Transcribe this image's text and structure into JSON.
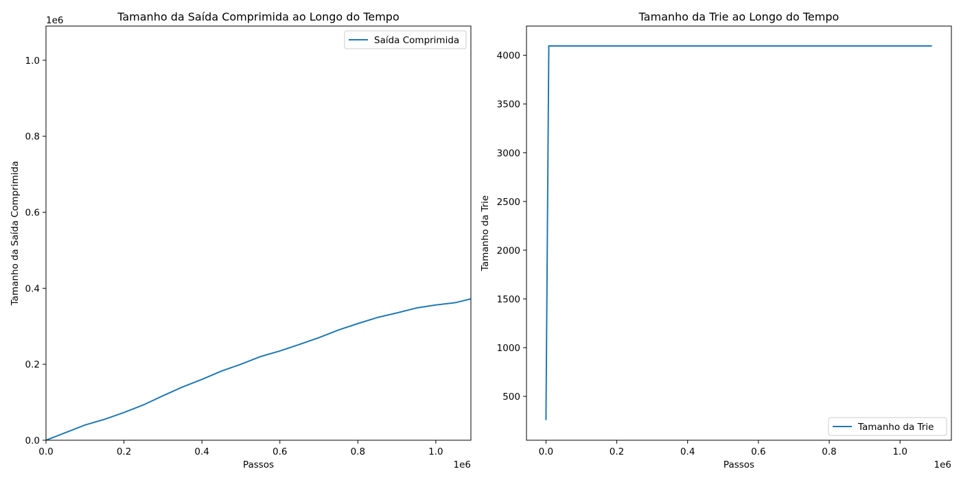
{
  "chart_data": [
    {
      "type": "line",
      "title": "Tamanho da Saída Comprimida ao Longo do Tempo",
      "xlabel": "Passos",
      "ylabel": "Tamanho da Saída Comprimida",
      "x_offset_label": "1e6",
      "y_offset_label": "1e6",
      "xlim": [
        0,
        1.09
      ],
      "ylim": [
        0,
        1.09
      ],
      "xticks": [
        0.0,
        0.2,
        0.4,
        0.6,
        0.8,
        1.0
      ],
      "xtick_labels": [
        "0.0",
        "0.2",
        "0.4",
        "0.6",
        "0.8",
        "1.0"
      ],
      "yticks": [
        0.0,
        0.2,
        0.4,
        0.6,
        0.8,
        1.0
      ],
      "ytick_labels": [
        "0.0",
        "0.2",
        "0.4",
        "0.6",
        "0.8",
        "1.0"
      ],
      "legend_position": "top-right",
      "color": "#1f77b4",
      "series": [
        {
          "name": "Saída Comprimida",
          "x": [
            0.0,
            0.05,
            0.1,
            0.15,
            0.2,
            0.25,
            0.3,
            0.35,
            0.4,
            0.45,
            0.5,
            0.55,
            0.6,
            0.65,
            0.7,
            0.75,
            0.8,
            0.85,
            0.9,
            0.95,
            1.0,
            1.05,
            1.09
          ],
          "y": [
            0.0,
            0.02,
            0.04,
            0.055,
            0.073,
            0.093,
            0.117,
            0.14,
            0.16,
            0.182,
            0.2,
            0.22,
            0.235,
            0.252,
            0.27,
            0.29,
            0.307,
            0.323,
            0.335,
            0.348,
            0.356,
            0.362,
            0.372
          ]
        }
      ]
    },
    {
      "type": "line",
      "title": "Tamanho da Trie ao Longo do Tempo",
      "xlabel": "Passos",
      "ylabel": "Tamanho da Trie",
      "x_offset_label": "1e6",
      "xlim": [
        -0.055,
        1.145
      ],
      "ylim": [
        50,
        4300
      ],
      "xticks": [
        0.0,
        0.2,
        0.4,
        0.6,
        0.8,
        1.0
      ],
      "xtick_labels": [
        "0.0",
        "0.2",
        "0.4",
        "0.6",
        "0.8",
        "1.0"
      ],
      "yticks": [
        500,
        1000,
        1500,
        2000,
        2500,
        3000,
        3500,
        4000
      ],
      "ytick_labels": [
        "500",
        "1000",
        "1500",
        "2000",
        "2500",
        "3000",
        "3500",
        "4000"
      ],
      "legend_position": "bottom-right",
      "color": "#1f77b4",
      "series": [
        {
          "name": "Tamanho da Trie",
          "x": [
            0.0,
            0.008,
            1.09
          ],
          "y": [
            256,
            4096,
            4096
          ]
        }
      ]
    }
  ]
}
